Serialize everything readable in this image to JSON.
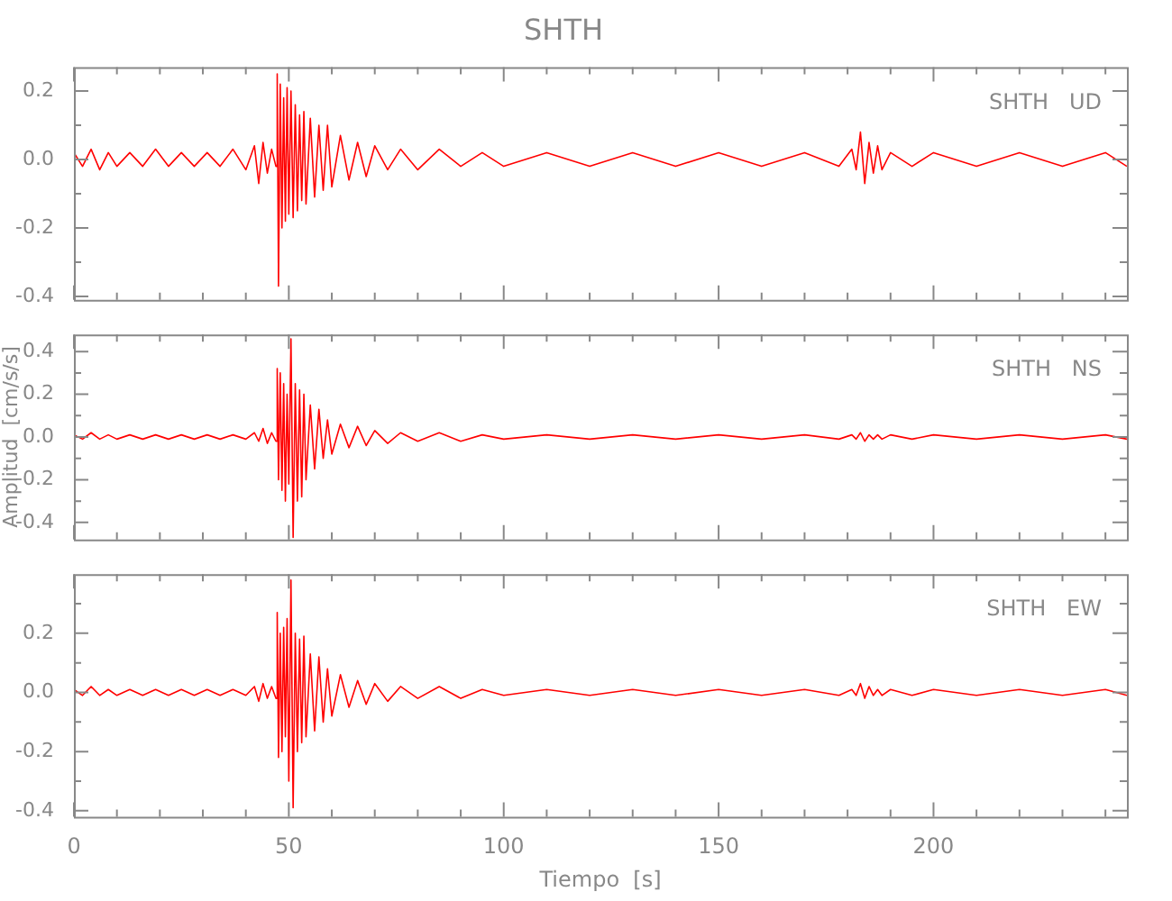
{
  "chart_data": [
    {
      "type": "line",
      "title": "SHTH",
      "tick_labels": "y",
      "legend": false,
      "x": [
        0,
        2,
        4,
        6,
        8,
        10,
        13,
        16,
        19,
        22,
        25,
        28,
        31,
        34,
        37,
        40,
        42,
        43,
        44,
        45,
        46,
        47,
        47.3,
        47.6,
        48,
        48.4,
        48.8,
        49.2,
        49.6,
        50,
        50.5,
        51,
        51.5,
        52,
        52.5,
        53,
        53.5,
        54,
        55,
        56,
        57,
        58,
        59,
        60,
        62,
        64,
        66,
        68,
        70,
        73,
        76,
        80,
        85,
        90,
        95,
        100,
        110,
        120,
        130,
        140,
        150,
        160,
        170,
        178,
        181,
        182,
        183,
        184,
        185,
        186,
        187,
        188,
        190,
        195,
        200,
        210,
        220,
        230,
        240,
        245
      ],
      "series": [
        {
          "name": "SHTH   UD",
          "color": "#ff0000",
          "values": [
            0.02,
            -0.02,
            0.03,
            -0.03,
            0.02,
            -0.02,
            0.02,
            -0.02,
            0.03,
            -0.02,
            0.02,
            -0.02,
            0.02,
            -0.02,
            0.03,
            -0.03,
            0.04,
            -0.07,
            0.05,
            -0.04,
            0.03,
            -0.02,
            0.25,
            -0.37,
            0.22,
            -0.2,
            0.18,
            -0.18,
            0.21,
            -0.16,
            0.2,
            -0.17,
            0.16,
            -0.15,
            0.13,
            -0.12,
            0.14,
            -0.13,
            0.12,
            -0.11,
            0.1,
            -0.09,
            0.1,
            -0.08,
            0.07,
            -0.06,
            0.05,
            -0.05,
            0.04,
            -0.03,
            0.03,
            -0.03,
            0.03,
            -0.02,
            0.02,
            -0.02,
            0.02,
            -0.02,
            0.02,
            -0.02,
            0.02,
            -0.02,
            0.02,
            -0.02,
            0.03,
            -0.03,
            0.08,
            -0.07,
            0.05,
            -0.04,
            0.04,
            -0.03,
            0.02,
            -0.02,
            0.02,
            -0.02,
            0.02,
            -0.02,
            0.02,
            -0.02
          ]
        }
      ],
      "xlim": [
        0,
        245
      ],
      "xticks": [
        0,
        {
          "value": 10,
          "label": null
        },
        {
          "value": 20,
          "label": null
        },
        {
          "value": 30,
          "label": null
        },
        {
          "value": 40,
          "label": null
        },
        50,
        {
          "value": 60,
          "label": null
        },
        {
          "value": 70,
          "label": null
        },
        {
          "value": 80,
          "label": null
        },
        {
          "value": 90,
          "label": null
        },
        100,
        {
          "value": 110,
          "label": null
        },
        {
          "value": 120,
          "label": null
        },
        {
          "value": 130,
          "label": null
        },
        {
          "value": 140,
          "label": null
        },
        150,
        {
          "value": 160,
          "label": null
        },
        {
          "value": 170,
          "label": null
        },
        {
          "value": 180,
          "label": null
        },
        {
          "value": 190,
          "label": null
        },
        200,
        {
          "value": 210,
          "label": null
        },
        {
          "value": 220,
          "label": null
        },
        {
          "value": 230,
          "label": null
        },
        {
          "value": 240,
          "label": null
        }
      ],
      "ylim": [
        -0.41,
        0.27
      ],
      "yticks": [
        {
          "value": -0.4,
          "label": "-0.4"
        },
        {
          "value": -0.3,
          "label": null
        },
        {
          "value": -0.2,
          "label": "-0.2"
        },
        {
          "value": -0.1,
          "label": null
        },
        {
          "value": 0,
          "label": "0.0"
        },
        {
          "value": 0.1,
          "label": null
        },
        {
          "value": 0.2,
          "label": "0.2"
        }
      ]
    },
    {
      "type": "line",
      "ylabel": "Amplitud  [cm/s/s]",
      "tick_labels": "y",
      "legend": false,
      "x": [
        0,
        2,
        4,
        6,
        8,
        10,
        13,
        16,
        19,
        22,
        25,
        28,
        31,
        34,
        37,
        40,
        42,
        43,
        44,
        45,
        46,
        47,
        47.3,
        47.6,
        48,
        48.4,
        48.8,
        49.2,
        49.6,
        50,
        50.5,
        51,
        51.5,
        52,
        52.5,
        53,
        53.5,
        54,
        55,
        56,
        57,
        58,
        59,
        60,
        62,
        64,
        66,
        68,
        70,
        73,
        76,
        80,
        85,
        90,
        95,
        100,
        110,
        120,
        130,
        140,
        150,
        160,
        170,
        178,
        181,
        182,
        183,
        184,
        185,
        186,
        187,
        188,
        190,
        195,
        200,
        210,
        220,
        230,
        240,
        245
      ],
      "series": [
        {
          "name": "SHTH   NS",
          "color": "#ff0000",
          "values": [
            0.01,
            -0.01,
            0.02,
            -0.01,
            0.01,
            -0.01,
            0.01,
            -0.01,
            0.01,
            -0.01,
            0.01,
            -0.01,
            0.01,
            -0.01,
            0.01,
            -0.01,
            0.02,
            -0.02,
            0.04,
            -0.03,
            0.02,
            -0.02,
            0.32,
            -0.2,
            0.3,
            -0.25,
            0.25,
            -0.3,
            0.2,
            -0.22,
            0.46,
            -0.47,
            0.25,
            -0.3,
            0.22,
            -0.28,
            0.2,
            -0.2,
            0.15,
            -0.15,
            0.13,
            -0.1,
            0.08,
            -0.08,
            0.06,
            -0.05,
            0.05,
            -0.04,
            0.03,
            -0.03,
            0.02,
            -0.02,
            0.02,
            -0.02,
            0.01,
            -0.01,
            0.01,
            -0.01,
            0.01,
            -0.01,
            0.01,
            -0.01,
            0.01,
            -0.01,
            0.01,
            -0.01,
            0.02,
            -0.02,
            0.01,
            -0.01,
            0.01,
            -0.01,
            0.01,
            -0.01,
            0.01,
            -0.01,
            0.01,
            -0.01,
            0.01,
            -0.01
          ]
        }
      ],
      "xlim": [
        0,
        245
      ],
      "xticks": [
        0,
        {
          "value": 10,
          "label": null
        },
        {
          "value": 20,
          "label": null
        },
        {
          "value": 30,
          "label": null
        },
        {
          "value": 40,
          "label": null
        },
        50,
        {
          "value": 60,
          "label": null
        },
        {
          "value": 70,
          "label": null
        },
        {
          "value": 80,
          "label": null
        },
        {
          "value": 90,
          "label": null
        },
        100,
        {
          "value": 110,
          "label": null
        },
        {
          "value": 120,
          "label": null
        },
        {
          "value": 130,
          "label": null
        },
        {
          "value": 140,
          "label": null
        },
        150,
        {
          "value": 160,
          "label": null
        },
        {
          "value": 170,
          "label": null
        },
        {
          "value": 180,
          "label": null
        },
        {
          "value": 190,
          "label": null
        },
        200,
        {
          "value": 210,
          "label": null
        },
        {
          "value": 220,
          "label": null
        },
        {
          "value": 230,
          "label": null
        },
        {
          "value": 240,
          "label": null
        }
      ],
      "ylim": [
        -0.48,
        0.48
      ],
      "yticks": [
        {
          "value": -0.4,
          "label": "-0.4"
        },
        {
          "value": -0.3,
          "label": null
        },
        {
          "value": -0.2,
          "label": "-0.2"
        },
        {
          "value": -0.1,
          "label": null
        },
        {
          "value": 0,
          "label": "0.0"
        },
        {
          "value": 0.1,
          "label": null
        },
        {
          "value": 0.2,
          "label": "0.2"
        },
        {
          "value": 0.3,
          "label": null
        },
        {
          "value": 0.4,
          "label": "0.4"
        }
      ]
    },
    {
      "type": "line",
      "xlabel": "Tiempo  [s]",
      "legend": false,
      "x": [
        0,
        2,
        4,
        6,
        8,
        10,
        13,
        16,
        19,
        22,
        25,
        28,
        31,
        34,
        37,
        40,
        42,
        43,
        44,
        45,
        46,
        47,
        47.3,
        47.6,
        48,
        48.4,
        48.8,
        49.2,
        49.6,
        50,
        50.5,
        51,
        51.5,
        52,
        52.5,
        53,
        53.5,
        54,
        55,
        56,
        57,
        58,
        59,
        60,
        62,
        64,
        66,
        68,
        70,
        73,
        76,
        80,
        85,
        90,
        95,
        100,
        110,
        120,
        130,
        140,
        150,
        160,
        170,
        178,
        181,
        182,
        183,
        184,
        185,
        186,
        187,
        188,
        190,
        195,
        200,
        210,
        220,
        230,
        240,
        245
      ],
      "series": [
        {
          "name": "SHTH   EW",
          "color": "#ff0000",
          "values": [
            0.01,
            -0.01,
            0.02,
            -0.01,
            0.01,
            -0.01,
            0.01,
            -0.01,
            0.01,
            -0.01,
            0.01,
            -0.01,
            0.01,
            -0.01,
            0.01,
            -0.01,
            0.02,
            -0.03,
            0.03,
            -0.02,
            0.02,
            -0.02,
            0.27,
            -0.22,
            0.2,
            -0.2,
            0.22,
            -0.15,
            0.25,
            -0.3,
            0.38,
            -0.39,
            0.2,
            -0.2,
            0.18,
            -0.17,
            0.19,
            -0.15,
            0.13,
            -0.13,
            0.12,
            -0.1,
            0.08,
            -0.08,
            0.06,
            -0.05,
            0.04,
            -0.04,
            0.03,
            -0.03,
            0.02,
            -0.02,
            0.02,
            -0.02,
            0.01,
            -0.01,
            0.01,
            -0.01,
            0.01,
            -0.01,
            0.01,
            -0.01,
            0.01,
            -0.01,
            0.01,
            -0.01,
            0.03,
            -0.02,
            0.02,
            -0.01,
            0.01,
            -0.01,
            0.01,
            -0.01,
            0.01,
            -0.01,
            0.01,
            -0.01,
            0.01,
            -0.01
          ]
        }
      ],
      "xlim": [
        0,
        245
      ],
      "xticks": [
        0,
        {
          "value": 10,
          "label": null
        },
        {
          "value": 20,
          "label": null
        },
        {
          "value": 30,
          "label": null
        },
        {
          "value": 40,
          "label": null
        },
        50,
        {
          "value": 60,
          "label": null
        },
        {
          "value": 70,
          "label": null
        },
        {
          "value": 80,
          "label": null
        },
        {
          "value": 90,
          "label": null
        },
        100,
        {
          "value": 110,
          "label": null
        },
        {
          "value": 120,
          "label": null
        },
        {
          "value": 130,
          "label": null
        },
        {
          "value": 140,
          "label": null
        },
        150,
        {
          "value": 160,
          "label": null
        },
        {
          "value": 170,
          "label": null
        },
        {
          "value": 180,
          "label": null
        },
        {
          "value": 190,
          "label": null
        },
        200,
        {
          "value": 210,
          "label": null
        },
        {
          "value": 220,
          "label": null
        },
        {
          "value": 230,
          "label": null
        },
        {
          "value": 240,
          "label": null
        }
      ],
      "ylim": [
        -0.42,
        0.4
      ],
      "yticks": [
        {
          "value": -0.4,
          "label": "-0.4"
        },
        {
          "value": -0.3,
          "label": null
        },
        {
          "value": -0.2,
          "label": "-0.2"
        },
        {
          "value": -0.1,
          "label": null
        },
        {
          "value": 0,
          "label": "0.0"
        },
        {
          "value": 0.1,
          "label": null
        },
        {
          "value": 0.2,
          "label": "0.2"
        },
        {
          "value": 0.3,
          "label": null
        }
      ]
    }
  ]
}
